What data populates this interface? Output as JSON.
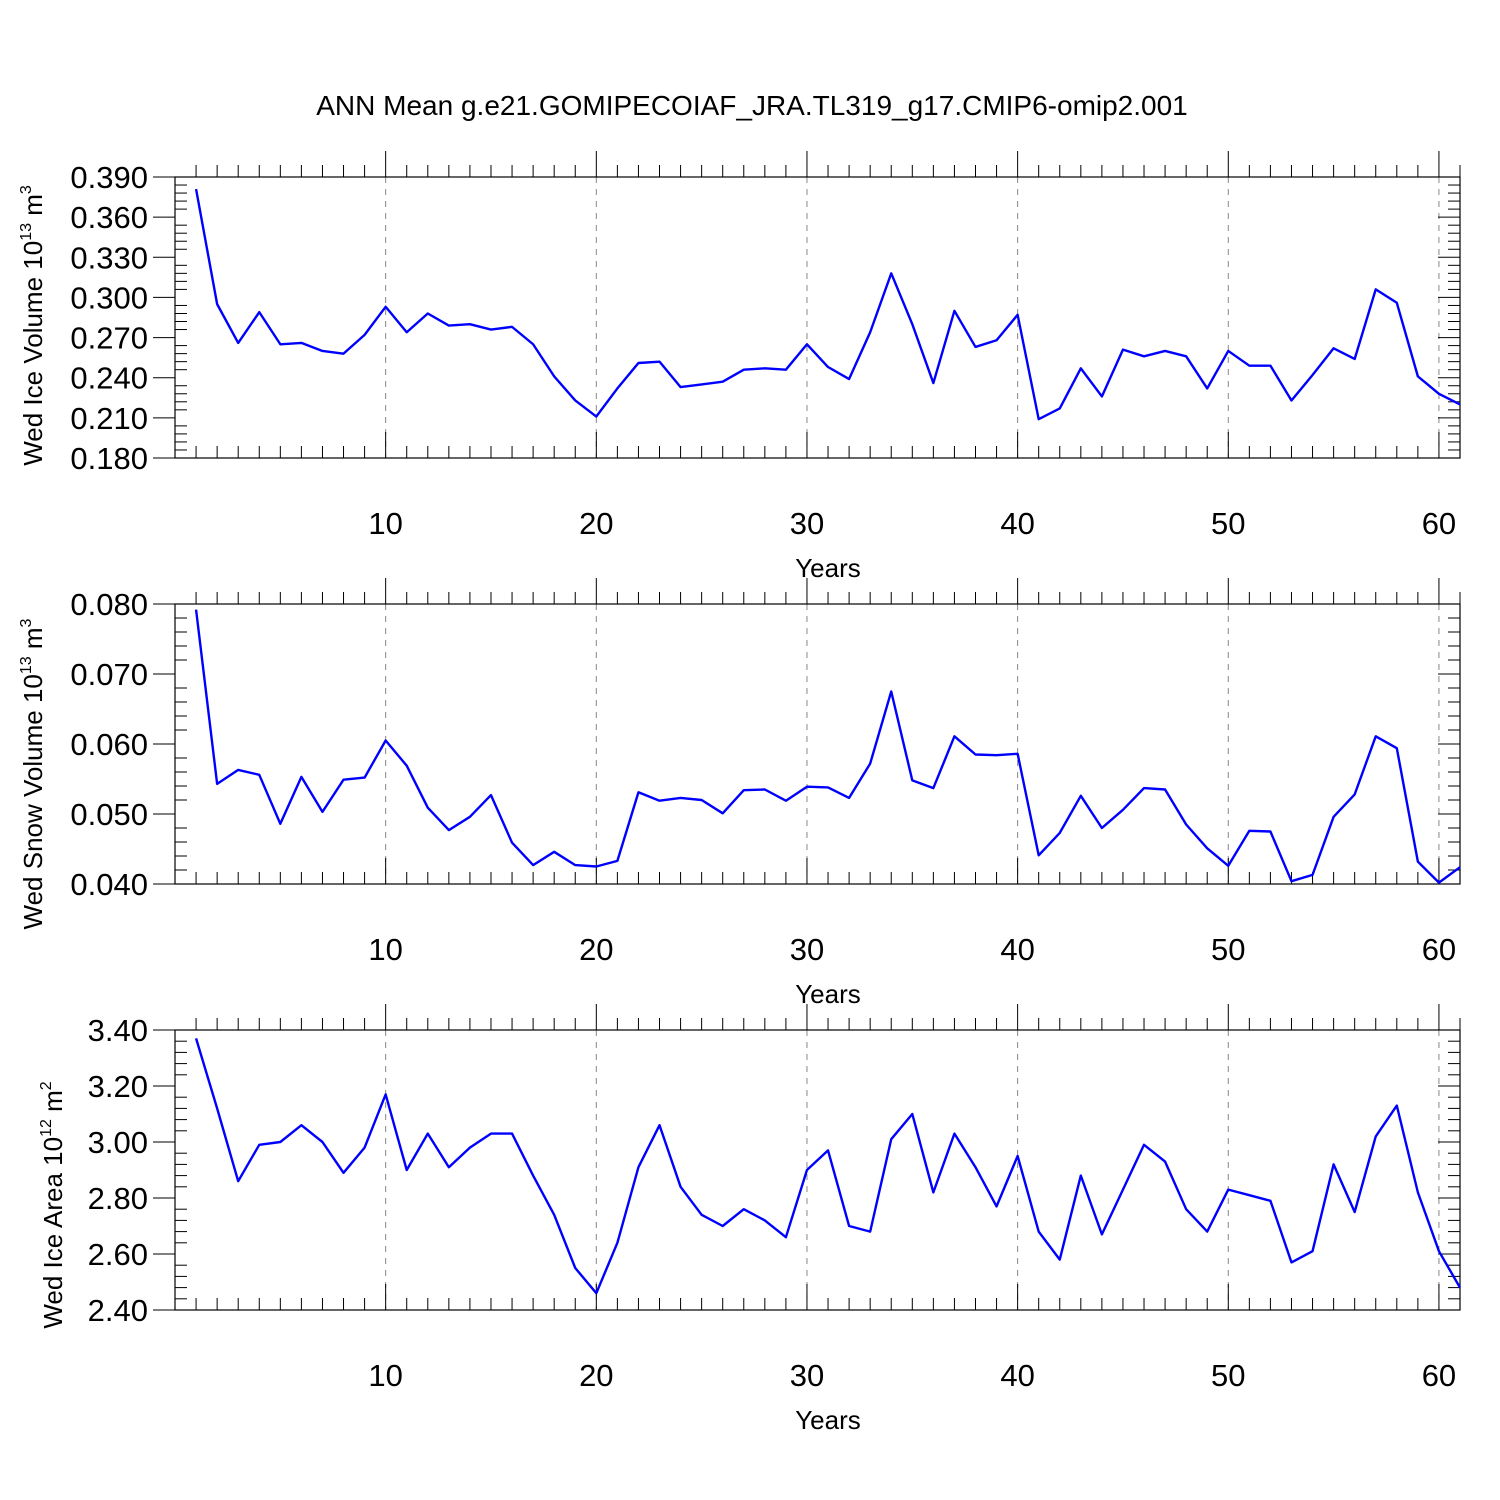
{
  "title": "ANN Mean g.e21.GOMIPECOIAF_JRA.TL319_g17.CMIP6-omip2.001",
  "colors": {
    "line": "#0000ff",
    "axis": "#000000",
    "grid": "#888888"
  },
  "chart_data": [
    {
      "type": "line",
      "name": "ice-volume",
      "ylabel_main": "Wed Ice Volume 10",
      "ylabel_exp": "13",
      "ylabel_unit": " m",
      "ylabel_unit_exp": "3",
      "xlabel": "Years",
      "xlim": [
        1,
        61
      ],
      "ylim": [
        0.18,
        0.39
      ],
      "yticks": [
        0.18,
        0.21,
        0.24,
        0.27,
        0.3,
        0.33,
        0.36,
        0.39
      ],
      "ytick_labels": [
        "0.180",
        "0.210",
        "0.240",
        "0.270",
        "0.300",
        "0.330",
        "0.360",
        "0.390"
      ],
      "xticks": [
        10,
        20,
        30,
        40,
        50,
        60
      ],
      "xtick_labels": [
        "10",
        "20",
        "30",
        "40",
        "50",
        "60"
      ],
      "grid": "vertical dashed at major x ticks",
      "values": [
        0.381,
        0.295,
        0.266,
        0.289,
        0.265,
        0.266,
        0.26,
        0.258,
        0.272,
        0.293,
        0.274,
        0.288,
        0.279,
        0.28,
        0.276,
        0.278,
        0.265,
        0.241,
        0.223,
        0.211,
        0.232,
        0.251,
        0.252,
        0.233,
        0.235,
        0.237,
        0.246,
        0.247,
        0.246,
        0.265,
        0.248,
        0.239,
        0.274,
        0.318,
        0.28,
        0.236,
        0.29,
        0.263,
        0.268,
        0.287,
        0.209,
        0.217,
        0.247,
        0.226,
        0.261,
        0.256,
        0.26,
        0.256,
        0.232,
        0.26,
        0.249,
        0.249,
        0.223,
        0.242,
        0.262,
        0.254,
        0.306,
        0.296,
        0.241,
        0.228,
        0.22
      ]
    },
    {
      "type": "line",
      "name": "snow-volume",
      "ylabel_main": "Wed Snow Volume 10",
      "ylabel_exp": "13",
      "ylabel_unit": " m",
      "ylabel_unit_exp": "3",
      "xlabel": "Years",
      "xlim": [
        1,
        61
      ],
      "ylim": [
        0.04,
        0.08
      ],
      "yticks": [
        0.04,
        0.05,
        0.06,
        0.07,
        0.08
      ],
      "ytick_labels": [
        "0.040",
        "0.050",
        "0.060",
        "0.070",
        "0.080"
      ],
      "xticks": [
        10,
        20,
        30,
        40,
        50,
        60
      ],
      "xtick_labels": [
        "10",
        "20",
        "30",
        "40",
        "50",
        "60"
      ],
      "grid": "vertical dashed at major x ticks",
      "values": [
        0.0792,
        0.0543,
        0.0563,
        0.0556,
        0.0486,
        0.0553,
        0.0503,
        0.0549,
        0.0552,
        0.0605,
        0.0569,
        0.0509,
        0.0477,
        0.0496,
        0.0527,
        0.0459,
        0.0427,
        0.0446,
        0.0427,
        0.0425,
        0.0433,
        0.0531,
        0.0519,
        0.0523,
        0.052,
        0.0501,
        0.0534,
        0.0535,
        0.0519,
        0.0539,
        0.0538,
        0.0523,
        0.0572,
        0.0675,
        0.0548,
        0.0537,
        0.0611,
        0.0585,
        0.0584,
        0.0586,
        0.0441,
        0.0473,
        0.0526,
        0.048,
        0.0506,
        0.0537,
        0.0535,
        0.0485,
        0.0451,
        0.0426,
        0.0476,
        0.0475,
        0.0404,
        0.0413,
        0.0496,
        0.0528,
        0.0611,
        0.0594,
        0.0432,
        0.0402,
        0.0424
      ]
    },
    {
      "type": "line",
      "name": "ice-area",
      "ylabel_main": "Wed Ice Area 10",
      "ylabel_exp": "12",
      "ylabel_unit": " m",
      "ylabel_unit_exp": "2",
      "xlabel": "Years",
      "xlim": [
        1,
        61
      ],
      "ylim": [
        2.4,
        3.4
      ],
      "yticks": [
        2.4,
        2.6,
        2.8,
        3.0,
        3.2,
        3.4
      ],
      "ytick_labels": [
        "2.40",
        "2.60",
        "2.80",
        "3.00",
        "3.20",
        "3.40"
      ],
      "xticks": [
        10,
        20,
        30,
        40,
        50,
        60
      ],
      "xtick_labels": [
        "10",
        "20",
        "30",
        "40",
        "50",
        "60"
      ],
      "grid": "vertical dashed at major x ticks",
      "values": [
        3.37,
        3.12,
        2.86,
        2.99,
        3.0,
        3.06,
        3.0,
        2.89,
        2.98,
        3.17,
        2.9,
        3.03,
        2.91,
        2.98,
        3.03,
        3.03,
        2.88,
        2.74,
        2.55,
        2.46,
        2.64,
        2.91,
        3.06,
        2.84,
        2.74,
        2.7,
        2.76,
        2.72,
        2.66,
        2.9,
        2.97,
        2.7,
        2.68,
        3.01,
        3.1,
        2.82,
        3.03,
        2.91,
        2.77,
        2.95,
        2.68,
        2.58,
        2.88,
        2.67,
        2.83,
        2.99,
        2.93,
        2.76,
        2.68,
        2.83,
        2.81,
        2.79,
        2.57,
        2.61,
        2.92,
        2.75,
        3.02,
        3.13,
        2.82,
        2.61,
        2.48
      ]
    }
  ]
}
